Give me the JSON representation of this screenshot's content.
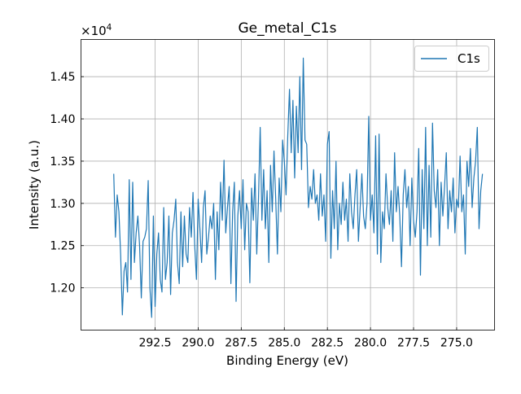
{
  "chart_data": {
    "type": "line",
    "title": "Ge_metal_C1s",
    "xlabel": "Binding Energy (eV)",
    "ylabel": "Intensity (a.u.)",
    "y_multiplier_label": "×10",
    "y_multiplier_exp": "4",
    "xlim": [
      296.8,
      272.8
    ],
    "ylim": [
      11500,
      14940
    ],
    "x_reversed": true,
    "grid": true,
    "legend_position": "top-right",
    "x_ticks": [
      292.5,
      290.0,
      287.5,
      285.0,
      282.5,
      280.0,
      277.5,
      275.0
    ],
    "x_tick_labels": [
      "292.5",
      "290.0",
      "287.5",
      "285.0",
      "282.5",
      "280.0",
      "277.5",
      "275.0"
    ],
    "y_ticks": [
      12000,
      12500,
      13000,
      13500,
      14000,
      14500
    ],
    "y_tick_labels": [
      "1.20",
      "1.25",
      "1.30",
      "1.35",
      "1.40",
      "1.45"
    ],
    "series": [
      {
        "name": "C1s",
        "color": "#1f77b4",
        "x_start": 294.9,
        "x_step": -0.1,
        "values": [
          13350,
          12600,
          13100,
          12900,
          12400,
          11680,
          12200,
          12300,
          11950,
          13280,
          12100,
          13250,
          12300,
          12650,
          12850,
          12500,
          11880,
          12550,
          12600,
          12700,
          13270,
          12000,
          11650,
          12850,
          11780,
          12400,
          12650,
          12100,
          11950,
          12950,
          12100,
          12300,
          12850,
          11920,
          12650,
          12800,
          13050,
          12300,
          12050,
          12900,
          12250,
          12850,
          12400,
          12300,
          12950,
          12600,
          13130,
          12500,
          12100,
          13050,
          12700,
          12300,
          12950,
          13150,
          12400,
          12600,
          12850,
          12700,
          13000,
          12100,
          12900,
          12450,
          13250,
          12800,
          13510,
          12650,
          12950,
          13200,
          12050,
          12900,
          13250,
          11840,
          12850,
          13150,
          12700,
          13280,
          12450,
          13000,
          12900,
          12060,
          13180,
          12800,
          13350,
          12400,
          13050,
          13900,
          12800,
          13400,
          12700,
          13150,
          12300,
          13450,
          12900,
          13620,
          13050,
          12400,
          13300,
          12900,
          13750,
          13500,
          13100,
          13800,
          14350,
          13600,
          14220,
          13300,
          14150,
          13600,
          14500,
          13400,
          14720,
          13750,
          13700,
          12950,
          13200,
          13050,
          13400,
          13000,
          13100,
          12800,
          13350,
          12850,
          13100,
          12550,
          13700,
          13850,
          12350,
          13150,
          12700,
          13500,
          12450,
          13000,
          12750,
          13250,
          12800,
          13050,
          12550,
          13350,
          12900,
          12700,
          13100,
          13400,
          12550,
          12950,
          13350,
          12850,
          12700,
          13000,
          14030,
          12800,
          13100,
          12650,
          13800,
          12400,
          13820,
          12300,
          12900,
          12700,
          13350,
          12950,
          12750,
          13150,
          12550,
          13600,
          12900,
          13200,
          12850,
          12250,
          13100,
          13400,
          12950,
          13200,
          12500,
          13300,
          12800,
          12600,
          12900,
          13650,
          12150,
          13400,
          12700,
          13900,
          12500,
          13450,
          12600,
          13950,
          13150,
          12950,
          13400,
          12500,
          13250,
          12850,
          13200,
          13600,
          12700,
          13150,
          12900,
          13300,
          12650,
          13050,
          12950,
          13560,
          12900,
          13100,
          12400,
          13500,
          13200,
          13650,
          12950,
          13300,
          13500,
          13900,
          12700,
          13150,
          13350
        ]
      }
    ]
  }
}
